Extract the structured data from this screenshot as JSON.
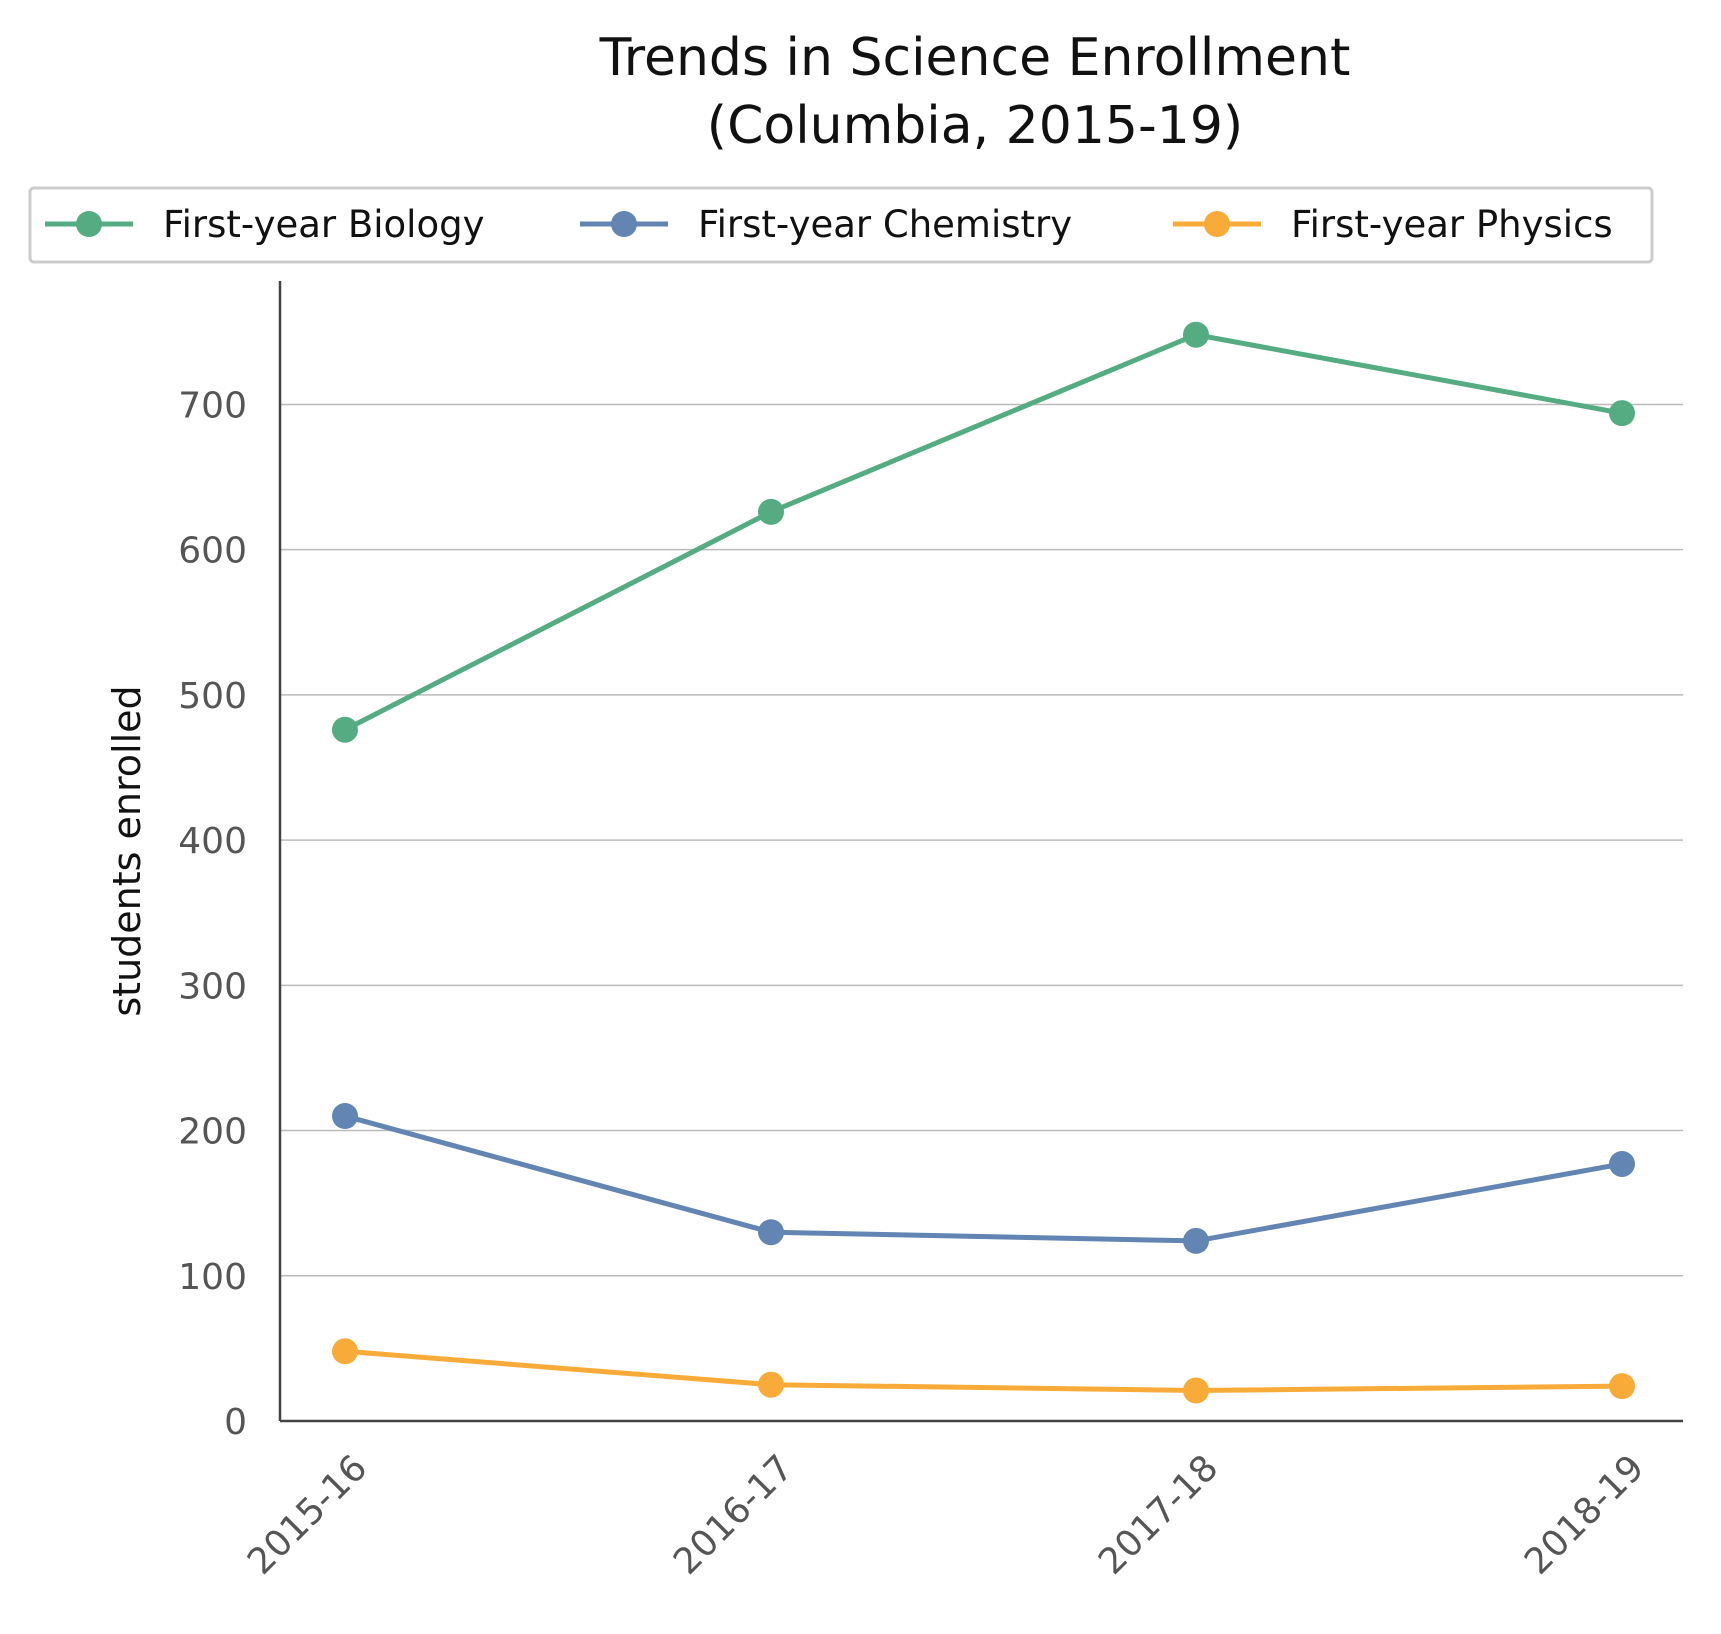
{
  "chart_data": {
    "type": "line",
    "title": "Trends in Science Enrollment",
    "subtitle": "(Columbia, 2015-19)",
    "ylabel": "students enrolled",
    "xlabel": "",
    "categories": [
      "2015-16",
      "2016-17",
      "2017-18",
      "2018-19"
    ],
    "ylim": [
      0,
      785
    ],
    "yticks": [
      0,
      100,
      200,
      300,
      400,
      500,
      600,
      700
    ],
    "grid": "horizontal",
    "legend_position": "top",
    "series": [
      {
        "name": "First-year Biology",
        "color": "#55ab82",
        "values": [
          476,
          626,
          748,
          694
        ]
      },
      {
        "name": "First-year Chemistry",
        "color": "#6385b3",
        "values": [
          210,
          130,
          124,
          177
        ]
      },
      {
        "name": "First-year Physics",
        "color": "#f9ab3a",
        "values": [
          48,
          25,
          21,
          24
        ]
      }
    ]
  }
}
